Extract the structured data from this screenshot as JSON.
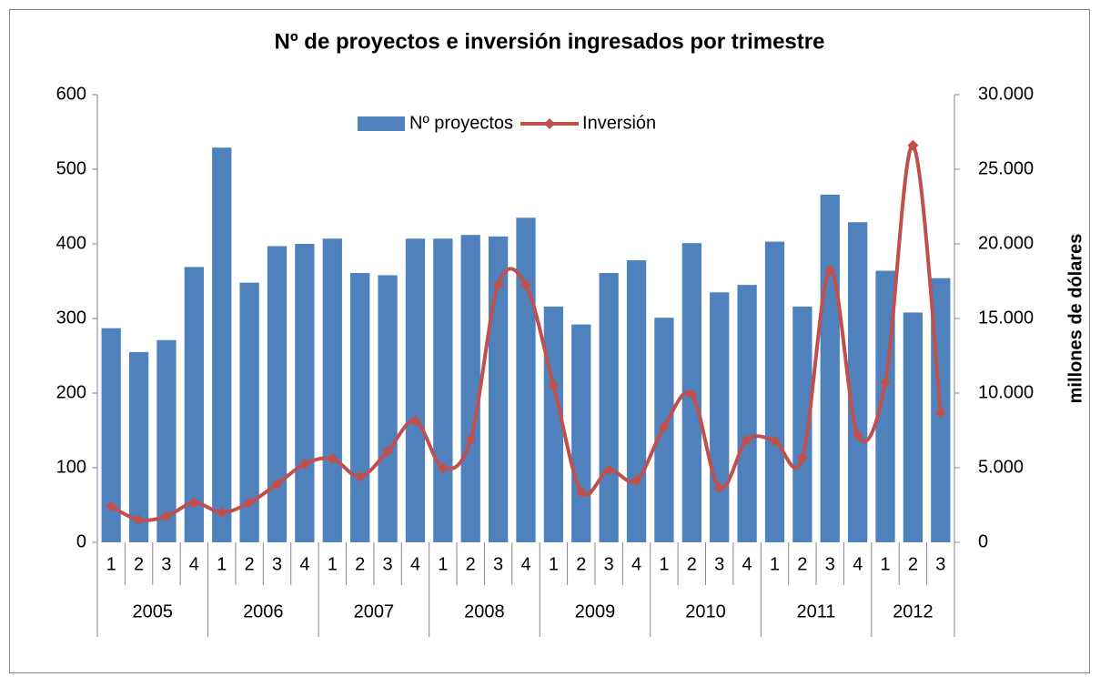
{
  "chart_data": {
    "type": "combo",
    "title": "Nº de proyectos e inversión ingresados por trimestre",
    "y2_label": "millones de dólares",
    "legend": "top",
    "category_groups": [
      {
        "name": "2005",
        "categories": [
          "1",
          "2",
          "3",
          "4"
        ]
      },
      {
        "name": "2006",
        "categories": [
          "1",
          "2",
          "3",
          "4"
        ]
      },
      {
        "name": "2007",
        "categories": [
          "1",
          "2",
          "3",
          "4"
        ]
      },
      {
        "name": "2008",
        "categories": [
          "1",
          "2",
          "3",
          "4"
        ]
      },
      {
        "name": "2009",
        "categories": [
          "1",
          "2",
          "3",
          "4"
        ]
      },
      {
        "name": "2010",
        "categories": [
          "1",
          "2",
          "3",
          "4"
        ]
      },
      {
        "name": "2011",
        "categories": [
          "1",
          "2",
          "3",
          "4"
        ]
      },
      {
        "name": "2012",
        "categories": [
          "1",
          "2",
          "3"
        ]
      }
    ],
    "series": [
      {
        "name": "Nº proyectos",
        "type": "bar",
        "color": "#4f81bd",
        "values": [
          287,
          255,
          271,
          369,
          529,
          348,
          397,
          400,
          407,
          361,
          358,
          407,
          407,
          412,
          410,
          435,
          316,
          292,
          361,
          378,
          301,
          401,
          335,
          345,
          403,
          316,
          466,
          429,
          364,
          308,
          354
        ]
      },
      {
        "name": "Inversión",
        "type": "line",
        "axis": "y2",
        "smooth": true,
        "color": "#c0504d",
        "values": [
          2400,
          1500,
          1750,
          2650,
          2000,
          2650,
          3900,
          5250,
          5600,
          4400,
          6100,
          8150,
          5000,
          6900,
          17250,
          17250,
          10500,
          3400,
          4850,
          4150,
          7750,
          9900,
          3650,
          6850,
          6800,
          5650,
          18250,
          7200,
          10700,
          26600,
          8700
        ]
      }
    ],
    "ylim": [
      0,
      600
    ],
    "yticks": [
      0,
      100,
      200,
      300,
      400,
      500,
      600
    ],
    "y2lim": [
      0,
      30000
    ],
    "y2ticks": [
      0,
      {
        "value": 5000,
        "label": "5.000"
      },
      {
        "value": 10000,
        "label": "10.000"
      },
      {
        "value": 15000,
        "label": "15.000"
      },
      {
        "value": 20000,
        "label": "20.000"
      },
      {
        "value": 25000,
        "label": "25.000"
      },
      {
        "value": 30000,
        "label": "30.000"
      }
    ]
  }
}
